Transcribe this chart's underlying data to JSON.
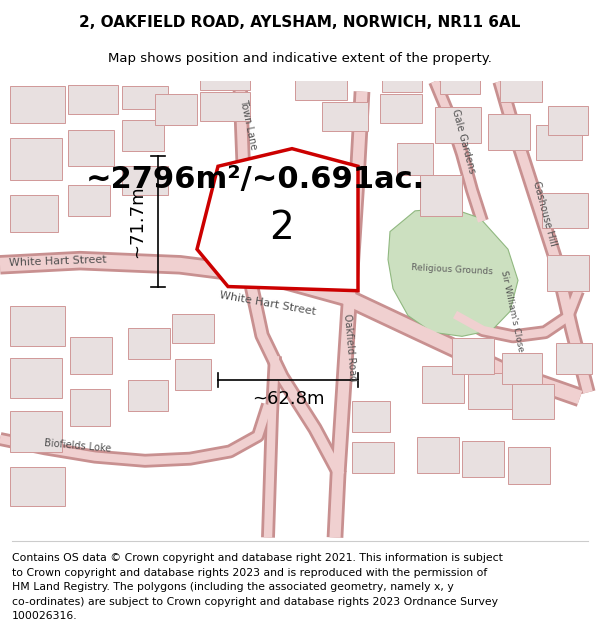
{
  "title_line1": "2, OAKFIELD ROAD, AYLSHAM, NORWICH, NR11 6AL",
  "title_line2": "Map shows position and indicative extent of the property.",
  "area_text": "~2796m²/~0.691ac.",
  "number_label": "2",
  "dim_height": "~71.7m",
  "dim_width": "~62.8m",
  "footer_lines": [
    "Contains OS data © Crown copyright and database right 2021. This information is subject",
    "to Crown copyright and database rights 2023 and is reproduced with the permission of",
    "HM Land Registry. The polygons (including the associated geometry, namely x, y",
    "co-ordinates) are subject to Crown copyright and database rights 2023 Ordnance Survey",
    "100026316."
  ],
  "bg_color": "#f0ebe8",
  "map_bg": "#f0ebe8",
  "plot_fill": "#ffffff",
  "plot_border": "#cc0000",
  "road_color": "#f0d0d0",
  "road_outline": "#c89090",
  "building_fill": "#e8e0e0",
  "building_stroke": "#d09898",
  "green_fill": "#cce0c0",
  "green_stroke": "#90b880",
  "title_fontsize": 11,
  "subtitle_fontsize": 9.5,
  "area_fontsize": 22,
  "number_fontsize": 28,
  "dim_fontsize": 13,
  "footer_fontsize": 7.8,
  "street_label_fontsize": 8.0,
  "small_label_fontsize": 7.0,
  "label_color": "#505050"
}
